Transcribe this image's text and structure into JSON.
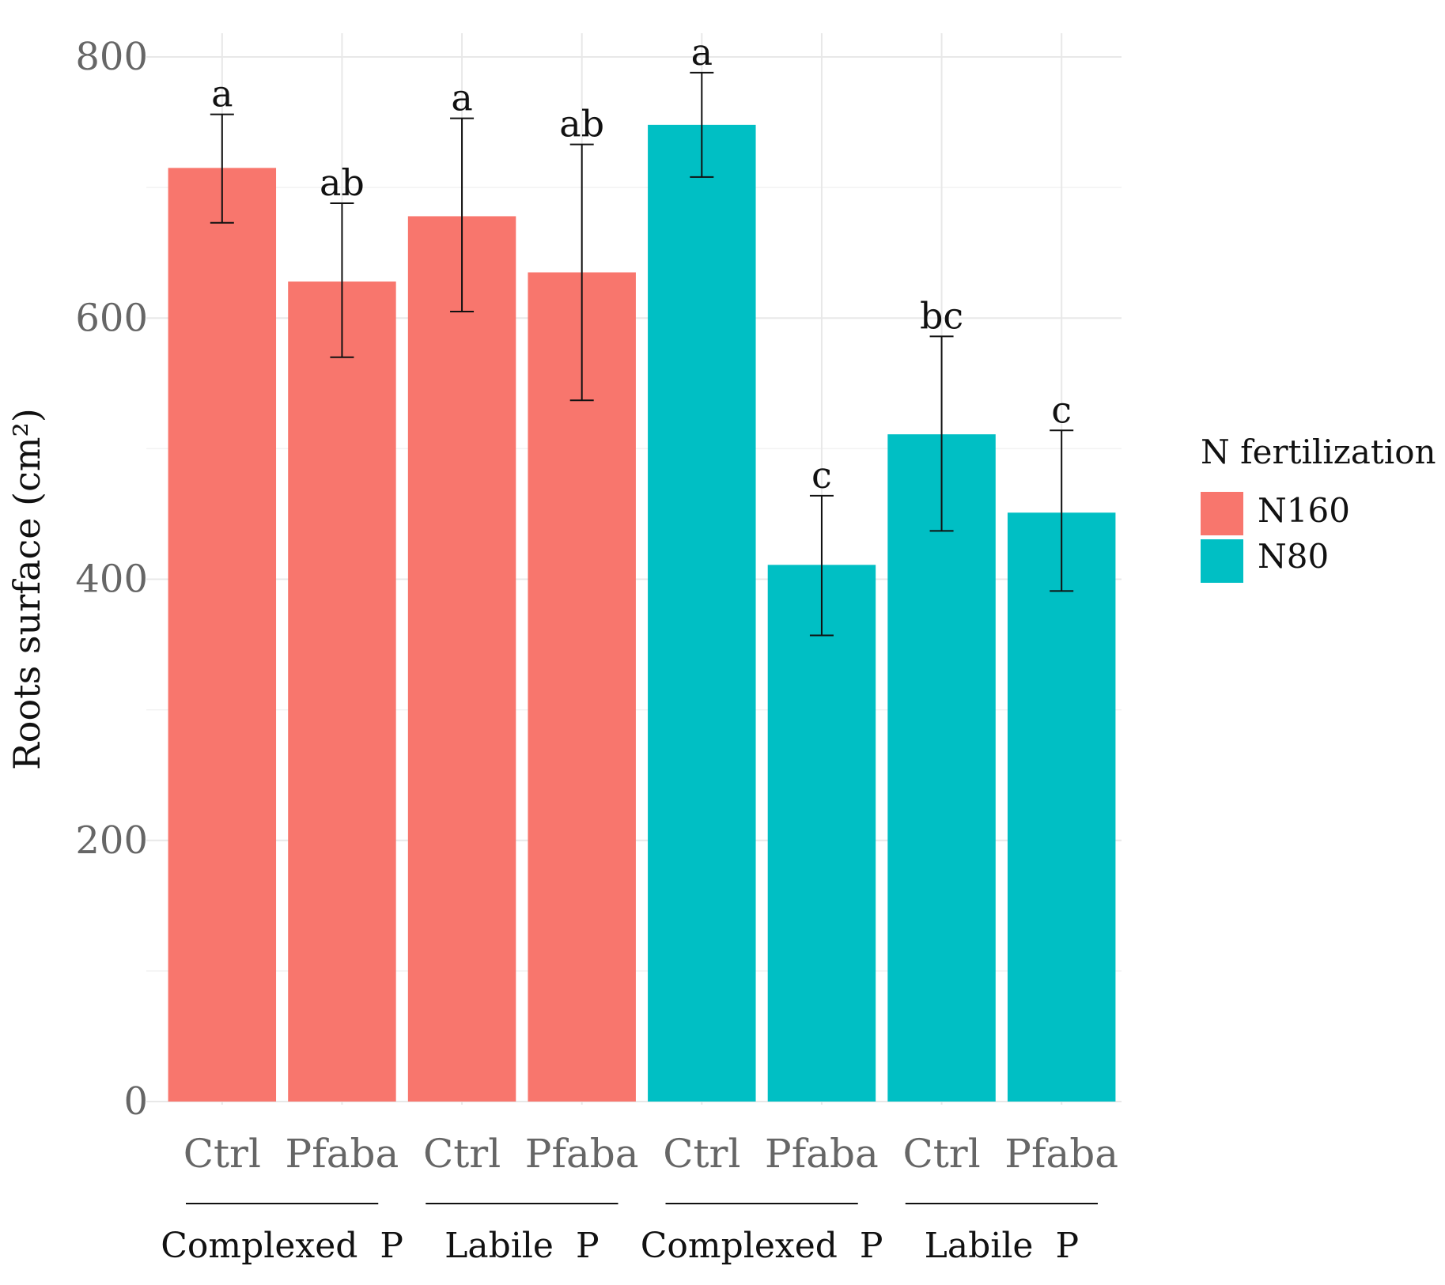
{
  "chart_data": {
    "type": "bar",
    "title": "",
    "xlabel": "",
    "ylabel": "Roots surface (cm²)",
    "ylim": [
      0,
      800
    ],
    "y_ticks": [
      0,
      200,
      400,
      600,
      800
    ],
    "grid": true,
    "legend": {
      "title": "N fertilization",
      "placement": "right",
      "entries": [
        {
          "name": "N160",
          "color": "#F8766D"
        },
        {
          "name": "N80",
          "color": "#00BFC4"
        }
      ]
    },
    "categories": [
      "Ctrl",
      "Pfaba",
      "Ctrl",
      "Pfaba",
      "Ctrl",
      "Pfaba",
      "Ctrl",
      "Pfaba"
    ],
    "group_labels": [
      "Complexed  P",
      "Labile  P",
      "Complexed  P",
      "Labile  P"
    ],
    "bars": [
      {
        "category": "Ctrl",
        "group": "Complexed  P",
        "series": "N160",
        "value": 715,
        "err_low": 673,
        "err_high": 756,
        "sig": "a"
      },
      {
        "category": "Pfaba",
        "group": "Complexed  P",
        "series": "N160",
        "value": 628,
        "err_low": 570,
        "err_high": 688,
        "sig": "ab"
      },
      {
        "category": "Ctrl",
        "group": "Labile  P",
        "series": "N160",
        "value": 678,
        "err_low": 605,
        "err_high": 753,
        "sig": "a"
      },
      {
        "category": "Pfaba",
        "group": "Labile  P",
        "series": "N160",
        "value": 635,
        "err_low": 537,
        "err_high": 733,
        "sig": "ab"
      },
      {
        "category": "Ctrl",
        "group": "Complexed  P",
        "series": "N80",
        "value": 748,
        "err_low": 708,
        "err_high": 788,
        "sig": "a"
      },
      {
        "category": "Pfaba",
        "group": "Complexed  P",
        "series": "N80",
        "value": 411,
        "err_low": 357,
        "err_high": 464,
        "sig": "c"
      },
      {
        "category": "Ctrl",
        "group": "Labile  P",
        "series": "N80",
        "value": 511,
        "err_low": 437,
        "err_high": 586,
        "sig": "bc"
      },
      {
        "category": "Pfaba",
        "group": "Labile  P",
        "series": "N80",
        "value": 451,
        "err_low": 391,
        "err_high": 514,
        "sig": "c"
      }
    ]
  }
}
